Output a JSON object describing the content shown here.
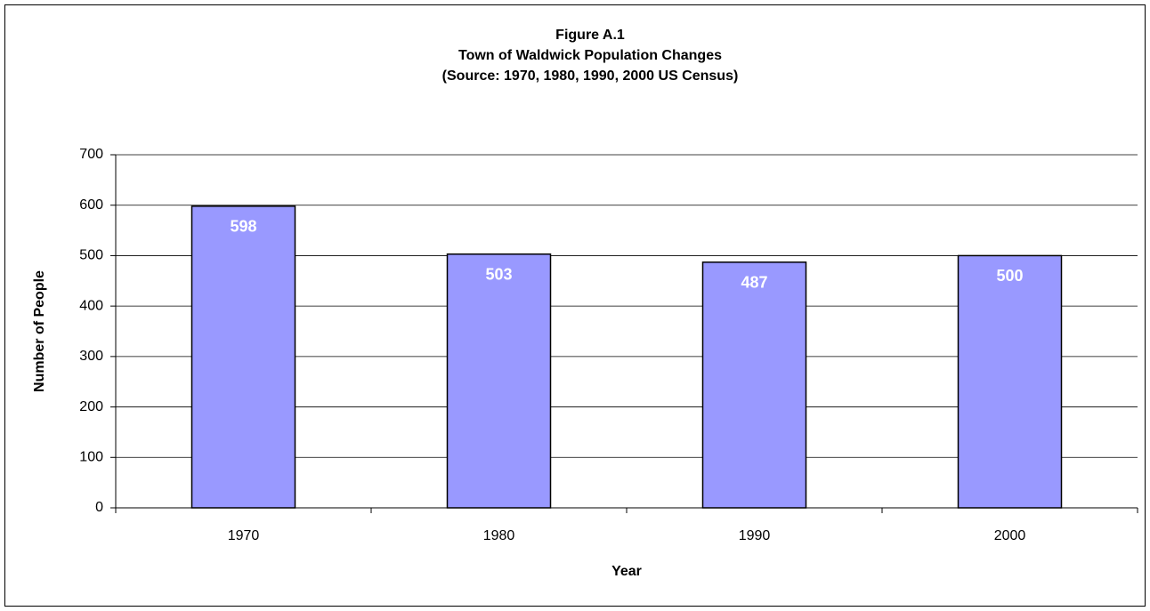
{
  "chart_data": {
    "type": "bar",
    "title": [
      "Figure A.1",
      "Town of Waldwick Population Changes",
      "(Source:  1970, 1980, 1990, 2000 US Census)"
    ],
    "x_label": "Year",
    "y_label": "Number of People",
    "categories": [
      "1970",
      "1980",
      "1990",
      "2000"
    ],
    "values": [
      598,
      503,
      487,
      500
    ],
    "color": "#9999ff",
    "ylim": [
      0,
      700
    ],
    "yticks": [
      0,
      100,
      200,
      300,
      400,
      500,
      600,
      700
    ],
    "grid": true
  }
}
